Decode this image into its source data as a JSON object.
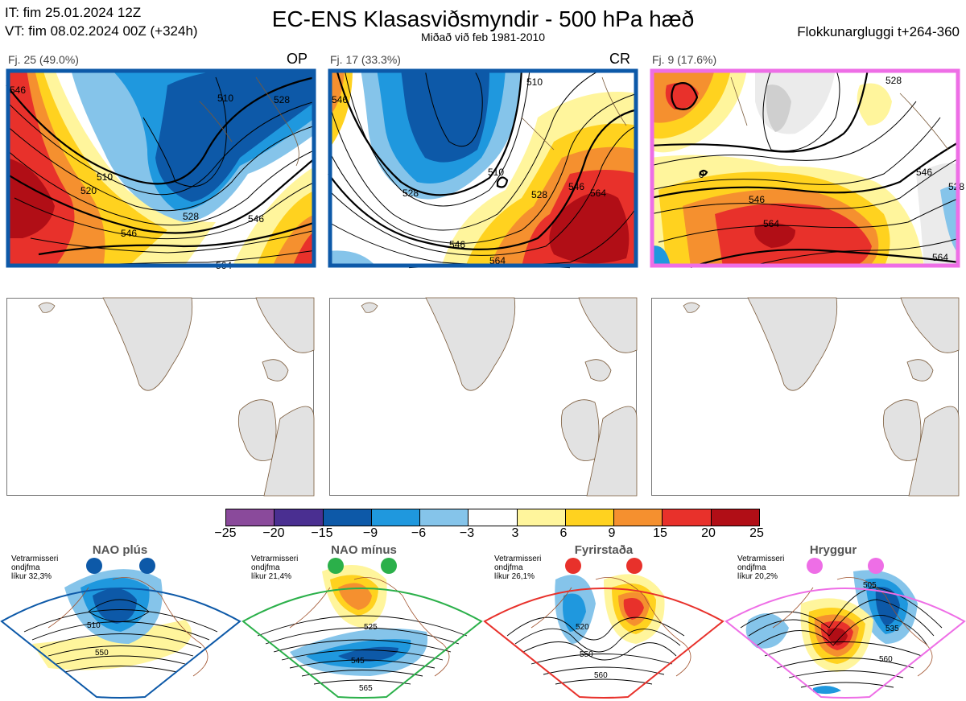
{
  "header": {
    "it_line": "IT: fim 25.01.2024 12Z",
    "vt_line": "VT: fim 08.02.2024 00Z  (+324h)",
    "title": "EC-ENS Klasasviðsmyndir - 500 hPa hæð",
    "subtitle": "Miðað við feb 1981-2010",
    "window": "Flokkunargluggi t+264-360"
  },
  "clusters": [
    {
      "label": "Fj. 25 (49.0%)",
      "tag": "OP",
      "border_color": "#0d59a8",
      "contour_labels": [
        "510",
        "520",
        "528",
        "546",
        "564",
        "546",
        "528",
        "510",
        "546"
      ]
    },
    {
      "label": "Fj. 17 (33.3%)",
      "tag": "CR",
      "border_color": "#0d59a8",
      "contour_labels": [
        "510",
        "528",
        "546",
        "564",
        "546",
        "528",
        "510",
        "546",
        "564"
      ]
    },
    {
      "label": "Fj. 9 (17.6%)",
      "tag": "",
      "border_color": "#ee6ee6",
      "contour_labels": [
        "528",
        "546",
        "564",
        "564",
        "546",
        "528",
        "0"
      ]
    }
  ],
  "colorbar": {
    "colors": [
      "#8a4a9b",
      "#4a2f91",
      "#0d59a8",
      "#1f98de",
      "#85c4ea",
      "#ffffff",
      "#fff59c",
      "#ffd21f",
      "#f5902f",
      "#e8312b",
      "#b10e16"
    ],
    "labels": [
      "−25",
      "−20",
      "−15",
      "−9",
      "−6",
      "−3",
      "3",
      "6",
      "9",
      "15",
      "20",
      "25"
    ]
  },
  "regimes": [
    {
      "name": "NAO plús",
      "note_1": "Vetrarmisseri",
      "note_2": "ondjfma",
      "note_3": "líkur 32,3%",
      "color": "#0d59a8",
      "contours": [
        "510",
        "550"
      ]
    },
    {
      "name": "NAO mínus",
      "note_1": "Vetrarmisseri",
      "note_2": "ondjfma",
      "note_3": "líkur 21,4%",
      "color": "#2bb04a",
      "contours": [
        "525",
        "545",
        "565"
      ]
    },
    {
      "name": "Fyrirstaða",
      "note_1": "Vetrarmisseri",
      "note_2": "ondjfma",
      "note_3": "líkur 26,1%",
      "color": "#e8312b",
      "contours": [
        "520",
        "550",
        "560"
      ]
    },
    {
      "name": "Hryggur",
      "note_1": "Vetrarmisseri",
      "note_2": "ondjfma",
      "note_3": "líkur 20,2%",
      "color": "#ee6ee6",
      "contours": [
        "505",
        "535",
        "560"
      ]
    }
  ]
}
